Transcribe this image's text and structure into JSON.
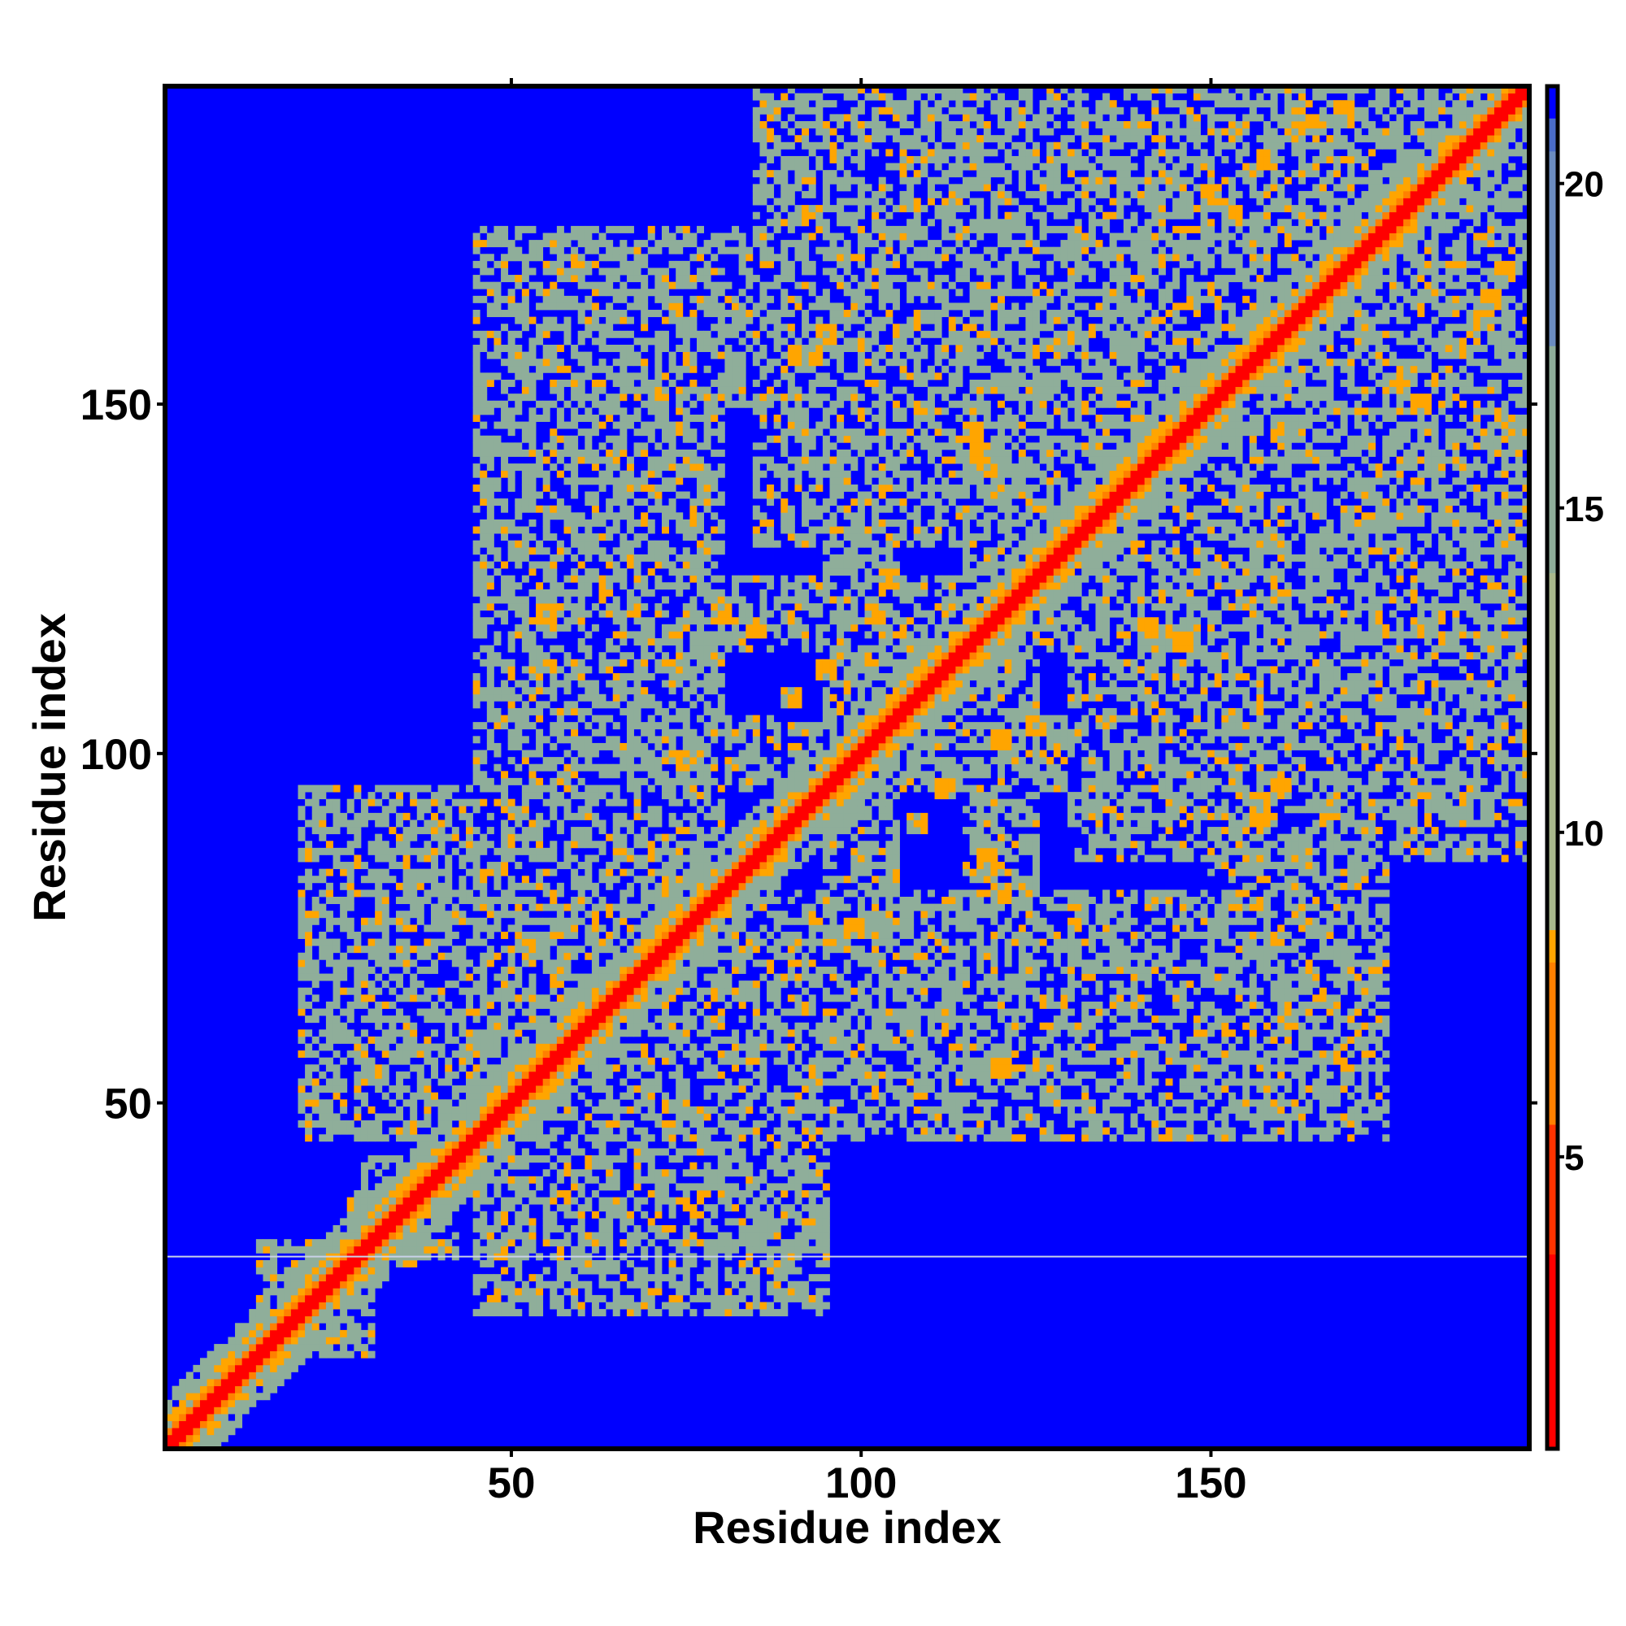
{
  "chart_data": {
    "type": "heatmap",
    "title": "",
    "xlabel": "Residue index",
    "ylabel": "Residue index",
    "xlim": [
      1,
      195
    ],
    "ylim": [
      1,
      195
    ],
    "x_ticks": [
      50,
      100,
      150
    ],
    "y_ticks": [
      50,
      100,
      150
    ],
    "grid": false,
    "symmetric": true,
    "colorbar": {
      "placement": "right",
      "range": [
        0.5,
        21.5
      ],
      "ticks": [
        5,
        10,
        15,
        20
      ],
      "stops": [
        {
          "value": 0.5,
          "color": "#ff0000"
        },
        {
          "value": 3.5,
          "color": "#ff3300"
        },
        {
          "value": 5.5,
          "color": "#ff8000"
        },
        {
          "value": 8.0,
          "color": "#ffa500"
        },
        {
          "value": 8.5,
          "color": "#a9b88c"
        },
        {
          "value": 14.0,
          "color": "#8fae9a"
        },
        {
          "value": 17.5,
          "color": "#6b8cc0"
        },
        {
          "value": 20.5,
          "color": "#4a6cc8"
        },
        {
          "value": 21.0,
          "color": "#0000ff"
        }
      ]
    },
    "background_value": 21,
    "background_color": "#0000ff",
    "diagonal_value": 1,
    "diagonal_color": "#ff0000",
    "near_diagonal_color": "#ff8000",
    "contact_color": "#8fae9a",
    "close_contact_color": "#ffa500",
    "gap_row_index": 28,
    "gap_row_color": "#c9d2e8",
    "contact_regions": [
      {
        "x": [
          14,
          26
        ],
        "y": [
          16,
          30
        ]
      },
      {
        "x": [
          28,
          38
        ],
        "y": [
          30,
          42
        ]
      },
      {
        "x": [
          42,
          55
        ],
        "y": [
          44,
          58
        ]
      },
      {
        "x": [
          45,
          95
        ],
        "y": [
          20,
          80
        ]
      },
      {
        "x": [
          95,
          175
        ],
        "y": [
          45,
          80
        ]
      },
      {
        "x": [
          45,
          135
        ],
        "y": [
          95,
          105
        ]
      },
      {
        "x": [
          45,
          115
        ],
        "y": [
          115,
          125
        ]
      },
      {
        "x": [
          45,
          90
        ],
        "y": [
          155,
          165
        ]
      },
      {
        "x": [
          85,
          125
        ],
        "y": [
          130,
          195
        ]
      },
      {
        "x": [
          125,
          195
        ],
        "y": [
          115,
          195
        ]
      },
      {
        "x": [
          140,
          195
        ],
        "y": [
          85,
          110
        ]
      },
      {
        "x": [
          150,
          175
        ],
        "y": [
          45,
          95
        ]
      },
      {
        "x": [
          100,
          130
        ],
        "y": [
          45,
          70
        ]
      },
      {
        "x": [
          135,
          150
        ],
        "y": [
          45,
          75
        ]
      }
    ],
    "close_contacts": [
      {
        "x": 17,
        "y": 24
      },
      {
        "x": 22,
        "y": 17
      },
      {
        "x": 28,
        "y": 35
      },
      {
        "x": 35,
        "y": 29
      },
      {
        "x": 45,
        "y": 48
      },
      {
        "x": 50,
        "y": 45
      },
      {
        "x": 56,
        "y": 60
      },
      {
        "x": 60,
        "y": 55
      },
      {
        "x": 91,
        "y": 157
      },
      {
        "x": 108,
        "y": 90
      },
      {
        "x": 112,
        "y": 95
      },
      {
        "x": 118,
        "y": 141
      },
      {
        "x": 143,
        "y": 117
      },
      {
        "x": 146,
        "y": 116
      },
      {
        "x": 157,
        "y": 93
      },
      {
        "x": 160,
        "y": 95
      },
      {
        "x": 165,
        "y": 190
      },
      {
        "x": 169,
        "y": 192
      },
      {
        "x": 185,
        "y": 158
      },
      {
        "x": 189,
        "y": 162
      },
      {
        "x": 150,
        "y": 180
      },
      {
        "x": 153,
        "y": 177
      },
      {
        "x": 172,
        "y": 168
      },
      {
        "x": 130,
        "y": 130
      },
      {
        "x": 80,
        "y": 120
      },
      {
        "x": 85,
        "y": 118
      },
      {
        "x": 120,
        "y": 102
      },
      {
        "x": 125,
        "y": 104
      },
      {
        "x": 55,
        "y": 120
      },
      {
        "x": 75,
        "y": 99
      }
    ]
  }
}
